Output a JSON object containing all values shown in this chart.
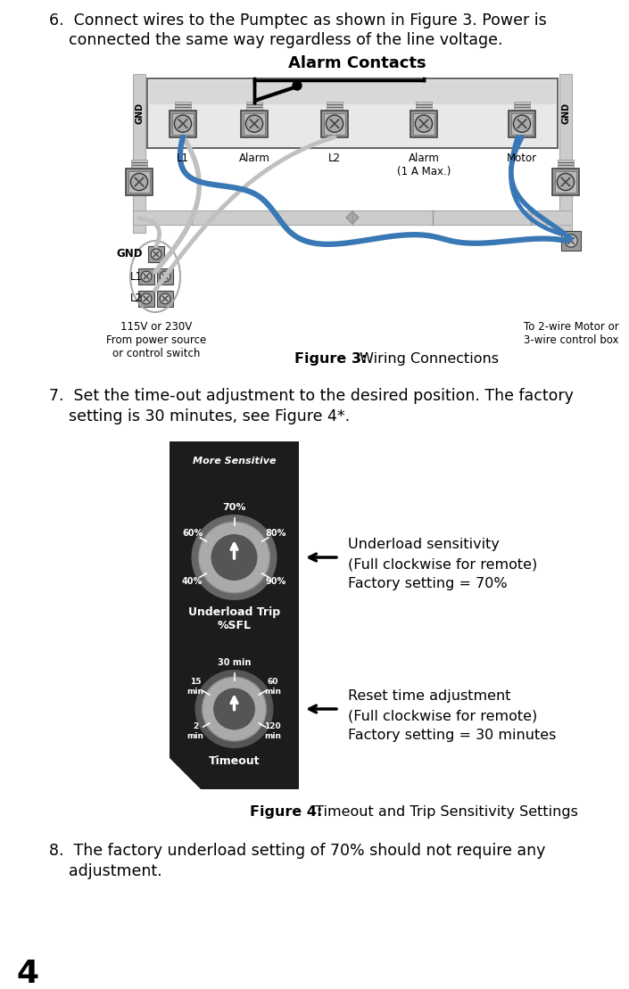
{
  "page_number": "4",
  "bg_color": "#ffffff",
  "text_color": "#000000",
  "item6_line1": "6.  Connect wires to the Pumptec as shown in Figure 3. Power is",
  "item6_line2": "    connected the same way regardless of the line voltage.",
  "fig3_label": "Alarm Contacts",
  "fig3_title_bold": "Figure 3:",
  "fig3_title_normal": " Wiring Connections",
  "item7_line1": "7.  Set the time-out adjustment to the desired position. The factory",
  "item7_line2": "    setting is 30 minutes, see Figure 4*.",
  "fig4_title_bold": "Figure 4:",
  "fig4_title_normal": " Timeout and Trip Sensitivity Settings",
  "underload_line1": "Underload sensitivity",
  "underload_line2": "(Full clockwise for remote)",
  "underload_line3": "Factory setting = 70%",
  "reset_line1": "Reset time adjustment",
  "reset_line2": "(Full clockwise for remote)",
  "reset_line3": "Factory setting = 30 minutes",
  "item8_line1": "8.  The factory underload setting of 70% should not require any",
  "item8_line2": "    adjustment.",
  "terminal_labels": [
    "L1",
    "Alarm",
    "L2",
    "Alarm\n(1 A Max.)",
    "Motor"
  ],
  "left_bottom_text": "115V or 230V\nFrom power source\nor control switch",
  "right_bottom_text": "To 2-wire Motor or\n3-wire control box",
  "gnd_label": "GND",
  "more_sensitive_text": "More Sensitive",
  "underload_trip_line1": "Underload Trip",
  "underload_trip_line2": "%SFL",
  "timeout_text": "Timeout",
  "blue_wire": "#3a78b5",
  "gray_wire": "#c0c0c0",
  "panel_color": "#1c1c1c",
  "panel_top_color": "#3a3530"
}
